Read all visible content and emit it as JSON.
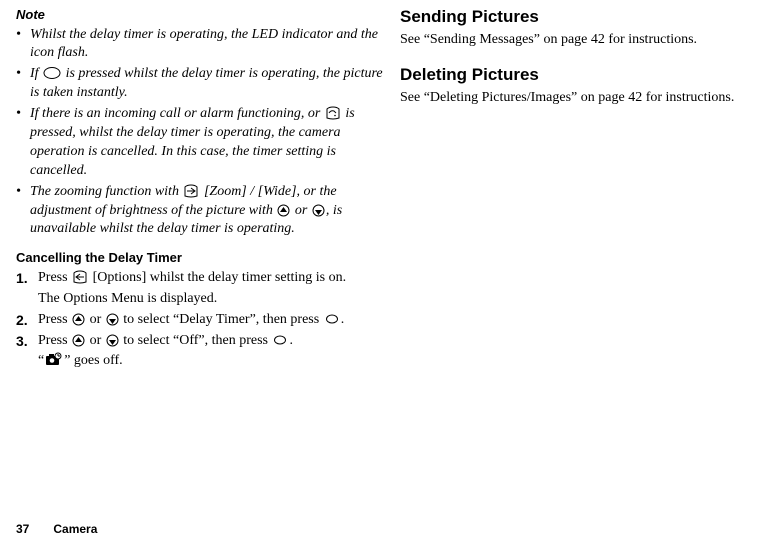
{
  "leftColumn": {
    "noteLabel": "Note",
    "bullets": [
      {
        "parts": [
          "Whilst the delay timer is operating, the LED indicator and the icon flash."
        ]
      },
      {
        "parts": [
          "If ",
          {
            "icon": "circle-large"
          },
          " is pressed whilst the delay timer is operating, the picture is taken instantly."
        ]
      },
      {
        "parts": [
          "If there is an incoming call or alarm functioning, or ",
          {
            "icon": "end-key"
          },
          " is pressed, whilst the delay timer is operating, the camera operation is cancelled. In this case, the timer setting is cancelled."
        ]
      },
      {
        "parts": [
          "The zooming function with ",
          {
            "icon": "soft-right"
          },
          " [Zoom] / [Wide], or the adjustment of brightness of the picture with ",
          {
            "icon": "up"
          },
          " or ",
          {
            "icon": "down"
          },
          ", is unavailable whilst the delay timer is operating."
        ]
      }
    ],
    "cancelHeading": "Cancelling the Delay Timer",
    "steps": [
      {
        "num": "1.",
        "parts": [
          "Press ",
          {
            "icon": "soft-left"
          },
          " [Options] whilst the delay timer setting is on."
        ],
        "after": "The Options Menu is displayed."
      },
      {
        "num": "2.",
        "parts": [
          "Press ",
          {
            "icon": "up"
          },
          " or ",
          {
            "icon": "down"
          },
          " to select “Delay Timer”, then press ",
          {
            "icon": "circle-small"
          },
          "."
        ]
      },
      {
        "num": "3.",
        "parts": [
          "Press ",
          {
            "icon": "up"
          },
          " or ",
          {
            "icon": "down"
          },
          " to select “Off”, then press ",
          {
            "icon": "circle-small"
          },
          "."
        ],
        "afterParts": [
          "“",
          {
            "icon": "camera-clock"
          },
          "” goes off."
        ]
      }
    ]
  },
  "rightColumn": {
    "sendHeading": "Sending Pictures",
    "sendBody": "See “Sending Messages” on page 42 for instructions.",
    "deleteHeading": "Deleting Pictures",
    "deleteBody": "See “Deleting Pictures/Images” on page 42 for instructions."
  },
  "footer": {
    "pageNum": "37",
    "section": "Camera"
  },
  "style": {
    "bodyFontFamily": "Times New Roman, Times, serif",
    "sansFontFamily": "Arial, Helvetica, sans-serif",
    "bodyFontSize": 14,
    "noteTitleFontSize": 13,
    "subheadFontSize": 13,
    "bigheadFontSize": 17,
    "footerFontSize": 12,
    "iconStroke": "#000000",
    "iconFillLight": "#ffffff",
    "iconFillDark": "#000000",
    "background": "#ffffff",
    "text": "#000000"
  }
}
